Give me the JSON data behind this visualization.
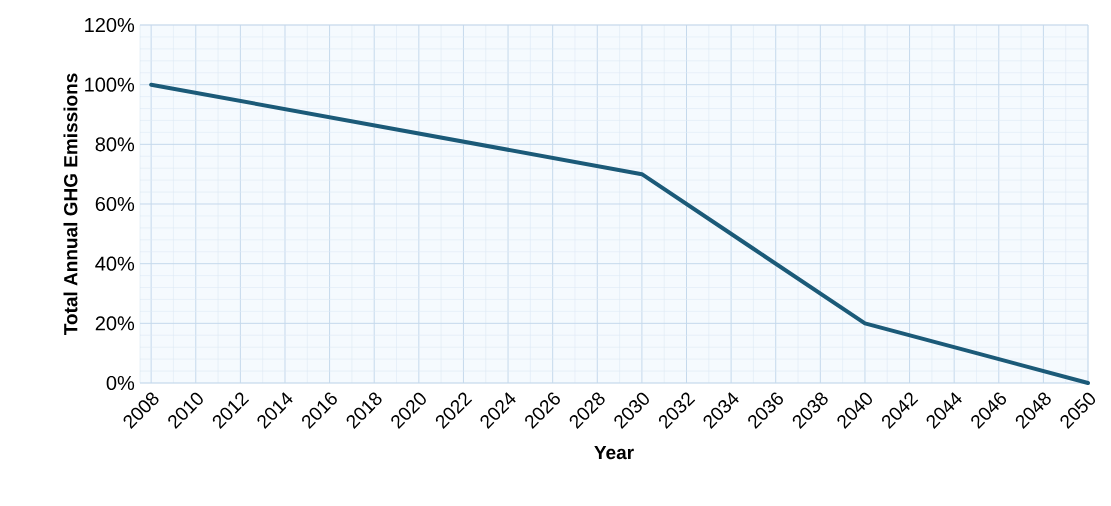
{
  "chart_data": {
    "type": "line",
    "xlabel": "Year",
    "ylabel": "Total Annual GHG Emissions",
    "x": [
      2008,
      2030,
      2035,
      2040,
      2045,
      2050
    ],
    "series": [
      {
        "color": "#1b5a78",
        "values": [
          100,
          70,
          45,
          20,
          10,
          0
        ]
      }
    ],
    "xlim": [
      2007.5,
      2050
    ],
    "xticks": [
      2008,
      2010,
      2012,
      2014,
      2016,
      2018,
      2020,
      2022,
      2024,
      2026,
      2028,
      2030,
      2032,
      2034,
      2036,
      2038,
      2040,
      2042,
      2044,
      2046,
      2048,
      2050
    ],
    "ylim": [
      0,
      120
    ],
    "yticks": [
      {
        "value": 0,
        "label": "0%"
      },
      {
        "value": 20,
        "label": "20%"
      },
      {
        "value": 40,
        "label": "40%"
      },
      {
        "value": 60,
        "label": "60%"
      },
      {
        "value": 80,
        "label": "80%"
      },
      {
        "value": 100,
        "label": "100%"
      },
      {
        "value": 120,
        "label": "120%"
      }
    ],
    "grid": true,
    "line_style": "solid",
    "marker": "none"
  }
}
